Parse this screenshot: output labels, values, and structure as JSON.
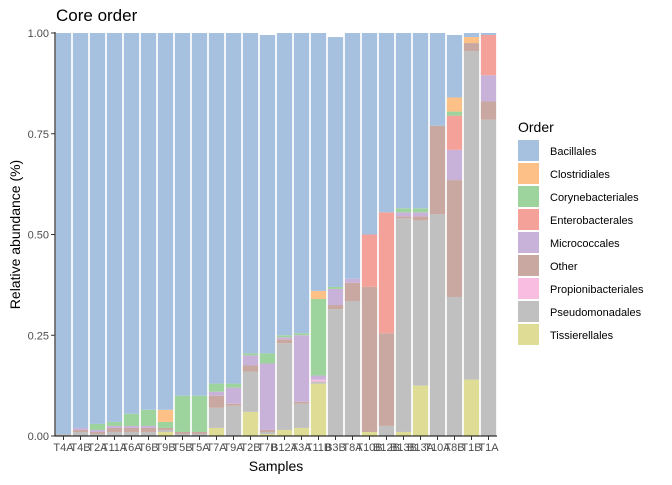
{
  "chart_data": {
    "type": "bar",
    "stacked": true,
    "title": "Core order",
    "xlabel": "Samples",
    "ylabel": "Relative abundance (%)",
    "ylim": [
      0,
      1
    ],
    "yticks": [
      0.0,
      0.25,
      0.5,
      0.75,
      1.0
    ],
    "ytick_labels": [
      "0.00",
      "0.25",
      "0.50",
      "0.75",
      "1.00"
    ],
    "grid": false,
    "legend": {
      "title": "Order",
      "position": "right"
    },
    "categories": [
      "T4A",
      "T4B",
      "T2A",
      "T11A",
      "T6A",
      "T6B",
      "T9B",
      "T5B",
      "T5A",
      "T7A",
      "T9A",
      "T2B",
      "T7B",
      "B12A",
      "T3A",
      "T11B",
      "B3B",
      "T8A",
      "T10B",
      "B12B",
      "B13B",
      "B13A",
      "T10A",
      "T8B",
      "T1B",
      "T1A"
    ],
    "tick_labels": [
      "T4A",
      "T4B",
      "T2A",
      "T11A",
      "T6A",
      "T6B",
      "T9B",
      "T5B",
      "T5A",
      "T7A",
      "T9A",
      "T2B",
      "T7B",
      "B12A",
      "T3A",
      "T11B",
      "B3B",
      "T8A",
      "T10B",
      "B12B",
      "B13B",
      "B13A",
      "T10A",
      "T8B",
      "T1B",
      "T1A"
    ],
    "stack_order": [
      "Tissierellales",
      "Pseudomonadales",
      "Propionibacteriales",
      "Other",
      "Micrococcales",
      "Enterobacterales",
      "Corynebacteriales",
      "Clostridiales",
      "Bacillales"
    ],
    "series": [
      {
        "name": "Bacillales",
        "color": "#A6C1E0",
        "values": [
          0.995,
          0.98,
          0.97,
          0.965,
          0.945,
          0.935,
          0.935,
          0.9,
          0.9,
          0.87,
          0.87,
          0.795,
          0.79,
          0.75,
          0.745,
          0.64,
          0.62,
          0.61,
          0.5,
          0.445,
          0.435,
          0.435,
          0.23,
          0.155,
          0.01,
          0.005
        ]
      },
      {
        "name": "Clostridiales",
        "color": "#FDC086",
        "values": [
          0,
          0,
          0,
          0,
          0,
          0,
          0.03,
          0,
          0,
          0,
          0,
          0,
          0,
          0,
          0,
          0.02,
          0,
          0,
          0,
          0,
          0,
          0,
          0,
          0.035,
          0.015,
          0
        ]
      },
      {
        "name": "Corynebacteriales",
        "color": "#9DD39D",
        "values": [
          0,
          0,
          0.015,
          0.01,
          0.03,
          0.04,
          0.015,
          0.09,
          0.09,
          0.02,
          0.01,
          0.005,
          0.025,
          0.005,
          0.005,
          0.19,
          0.005,
          0,
          0,
          0,
          0.01,
          0.01,
          0,
          0.01,
          0,
          0
        ]
      },
      {
        "name": "Enterobacterales",
        "color": "#F4A19A",
        "values": [
          0,
          0,
          0,
          0,
          0,
          0,
          0,
          0,
          0,
          0,
          0,
          0,
          0,
          0,
          0,
          0,
          0,
          0,
          0.13,
          0.3,
          0,
          0,
          0,
          0.085,
          0,
          0.1
        ]
      },
      {
        "name": "Micrococcales",
        "color": "#C9B2DA",
        "values": [
          0,
          0.005,
          0.005,
          0.005,
          0.005,
          0.005,
          0,
          0,
          0,
          0.01,
          0.04,
          0.025,
          0.165,
          0.005,
          0.165,
          0.01,
          0.04,
          0.01,
          0,
          0,
          0.01,
          0.01,
          0,
          0.075,
          0,
          0.065
        ]
      },
      {
        "name": "Other",
        "color": "#C8A8A0",
        "values": [
          0,
          0.005,
          0.005,
          0.01,
          0.01,
          0.01,
          0.005,
          0.005,
          0.005,
          0.03,
          0.005,
          0.015,
          0.005,
          0.01,
          0.005,
          0,
          0.01,
          0.045,
          0.36,
          0.23,
          0.005,
          0.01,
          0.22,
          0.29,
          0.02,
          0.045
        ]
      },
      {
        "name": "Propionibacteriales",
        "color": "#F8BDE0",
        "values": [
          0,
          0,
          0,
          0,
          0,
          0,
          0,
          0,
          0,
          0,
          0,
          0,
          0,
          0,
          0,
          0.005,
          0,
          0,
          0,
          0,
          0,
          0,
          0,
          0,
          0,
          0
        ]
      },
      {
        "name": "Pseudomonadales",
        "color": "#C0C0C0",
        "values": [
          0.005,
          0.01,
          0.005,
          0.01,
          0.01,
          0.01,
          0.005,
          0.005,
          0.005,
          0.05,
          0.075,
          0.1,
          0.005,
          0.215,
          0.06,
          0.005,
          0.315,
          0.335,
          0,
          0.025,
          0.53,
          0.41,
          0.55,
          0.345,
          0.815,
          0.785
        ]
      },
      {
        "name": "Tissierellales",
        "color": "#DEDC95",
        "values": [
          0,
          0,
          0,
          0,
          0,
          0,
          0.01,
          0,
          0,
          0.02,
          0,
          0.06,
          0.005,
          0.015,
          0.02,
          0.13,
          0,
          0,
          0.01,
          0,
          0.01,
          0.125,
          0,
          0,
          0.14,
          0
        ]
      }
    ]
  }
}
